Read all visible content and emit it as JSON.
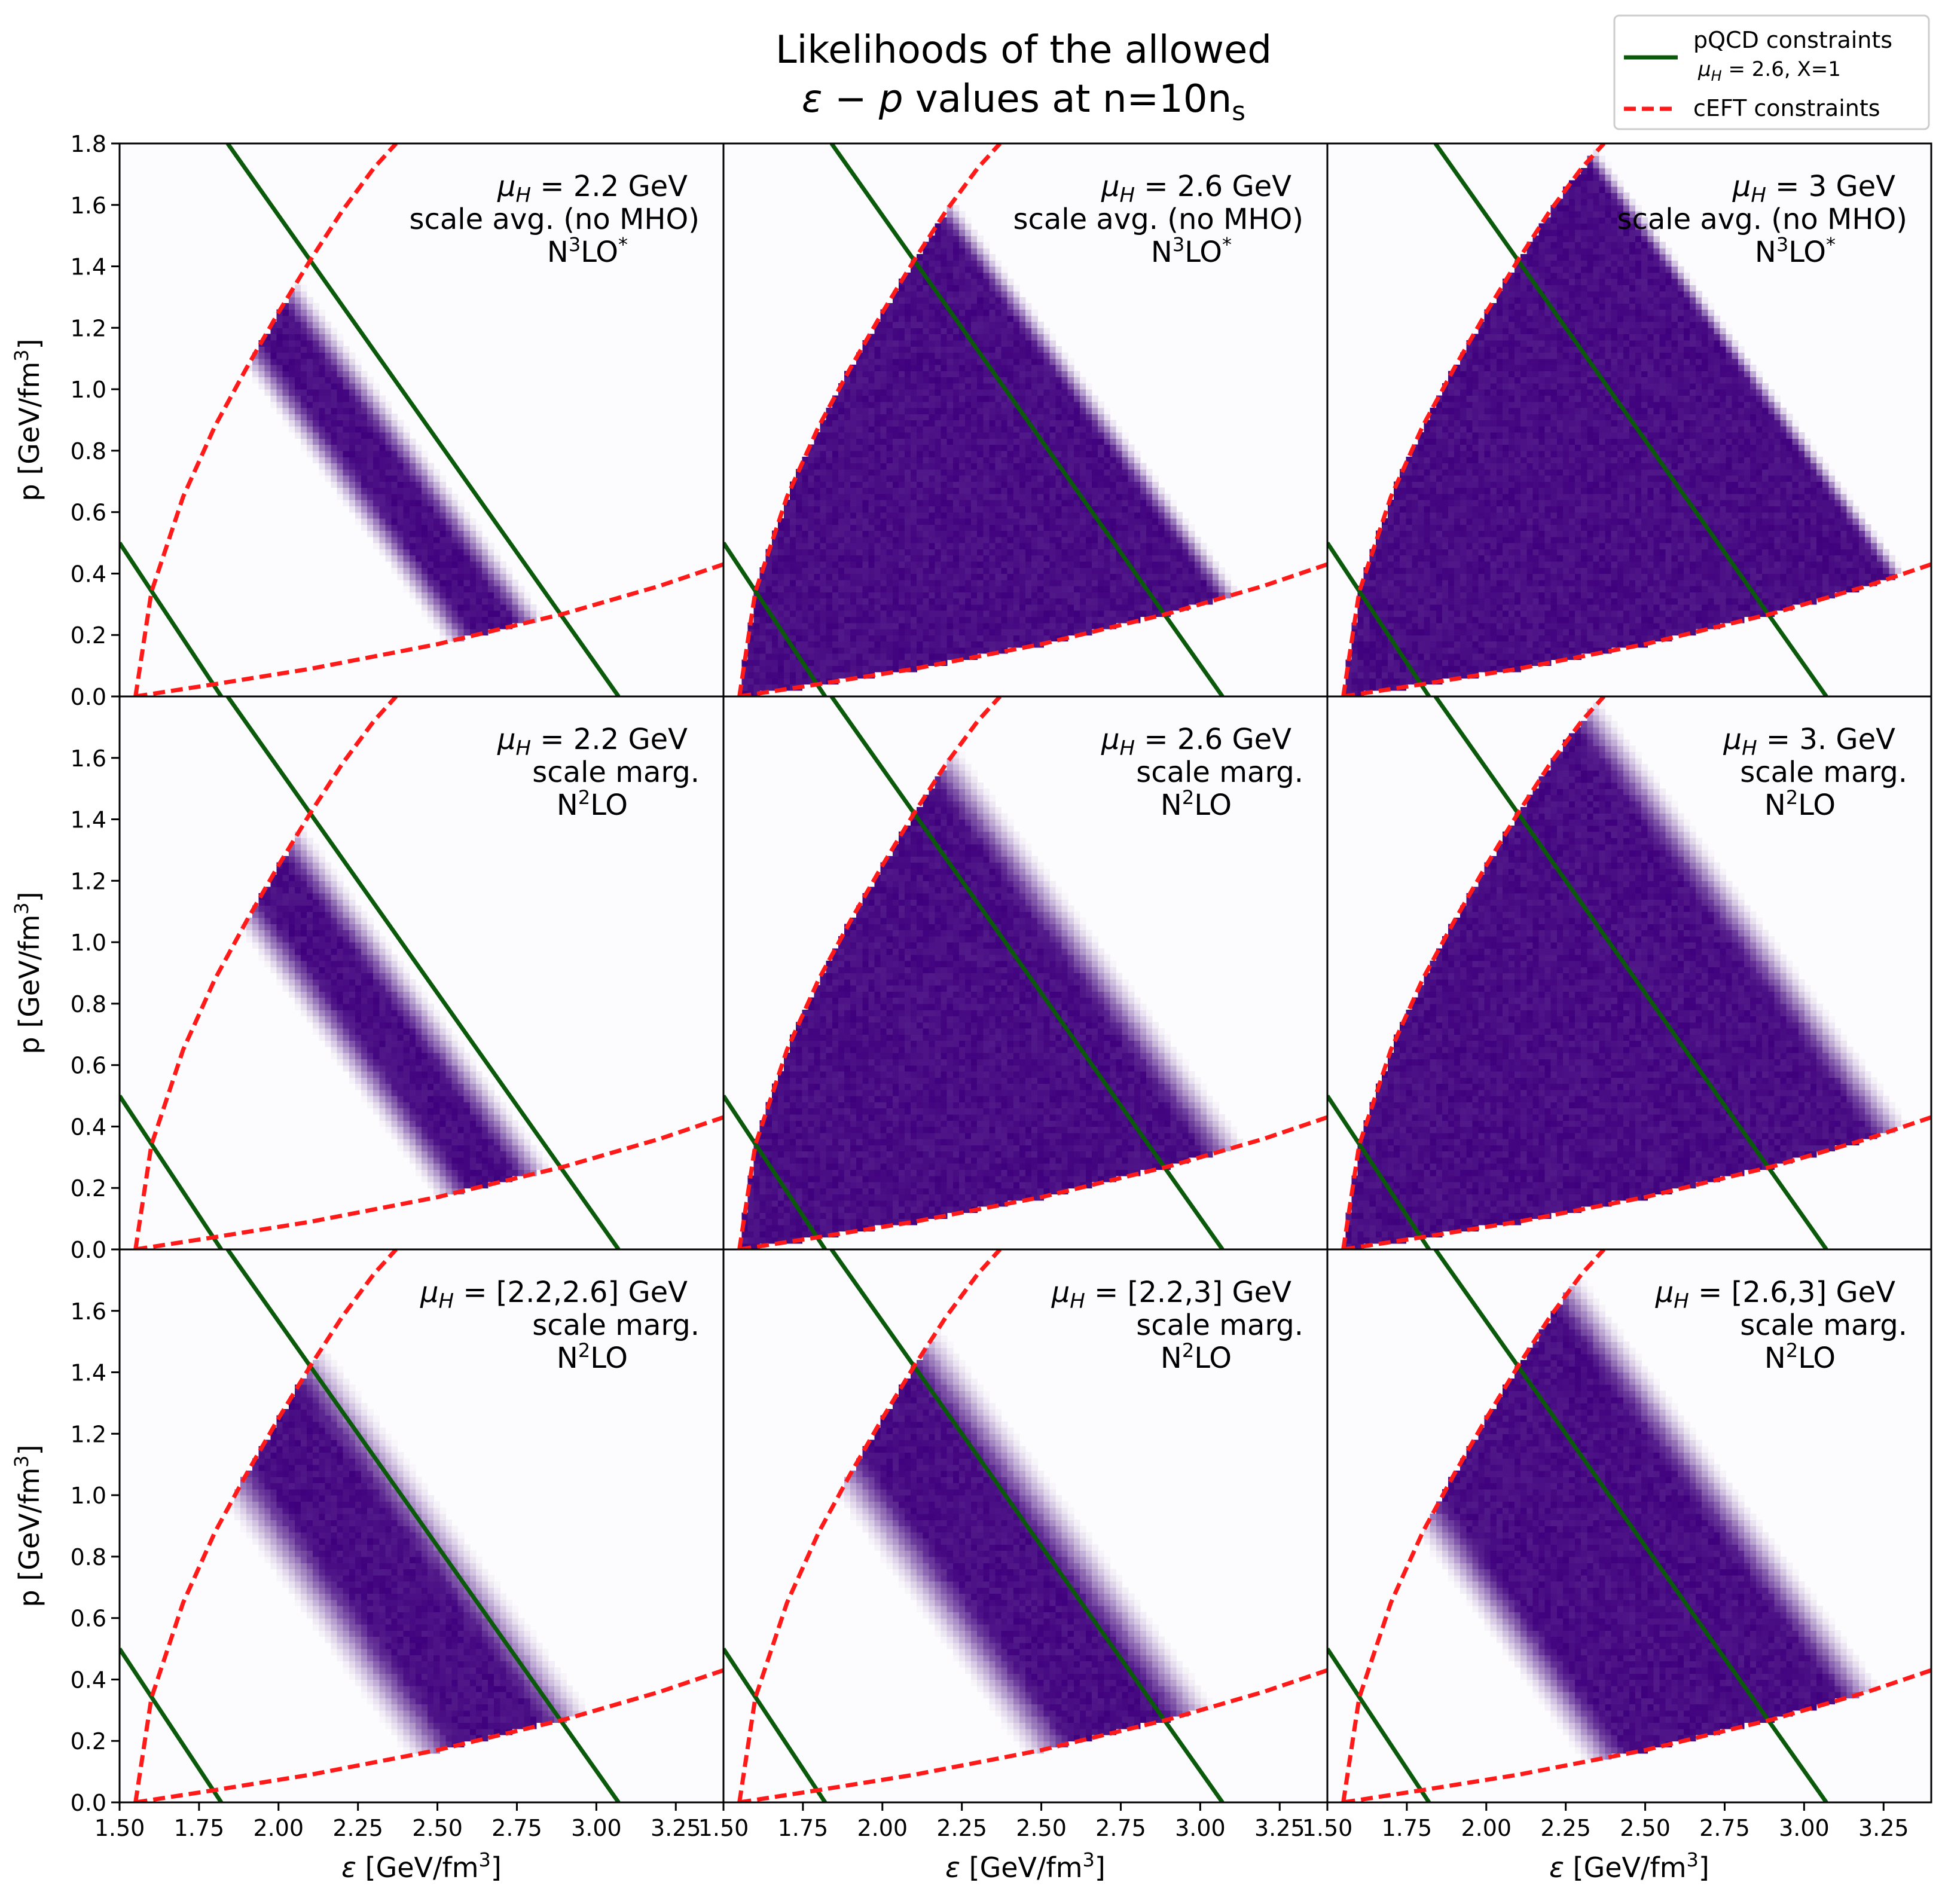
{
  "figure": {
    "title_line1": "Likelihoods of the allowed",
    "title_line2_prefix": "ε − p",
    "title_line2_mid": " values at n=10n",
    "title_line2_sub": "s",
    "xlabel_prefix": "ε [GeV/fm",
    "xlabel_sup": "3",
    "xlabel_suffix": "]",
    "ylabel_prefix": "p [GeV/fm",
    "ylabel_sup": "3",
    "ylabel_suffix": "]"
  },
  "legend": {
    "placement": "top-right",
    "entries": [
      {
        "line1": "pQCD constraints",
        "line2_mu": "μ",
        "line2_sub": "H",
        "line2_rest": " = 2.6, X=1",
        "color": "#0b5a0b",
        "style": "solid"
      },
      {
        "line1": "cEFT constraints",
        "color": "#ff1a1a",
        "style": "dashed"
      }
    ]
  },
  "colors": {
    "density_cmap": "Purples",
    "density_max": "#3f007d",
    "density_min": "#fcfbfd",
    "pqcd_line": "#0b5a0b",
    "ceft_line": "#ff1a1a"
  },
  "chart_data": {
    "type": "heatmap",
    "layout": "3x3 grid, shared axes",
    "xlabel": "ε [GeV/fm³]",
    "ylabel": "p [GeV/fm³]",
    "xlim": [
      1.5,
      3.4
    ],
    "ylim": [
      0.0,
      1.8
    ],
    "xticks": [
      1.5,
      1.75,
      2.0,
      2.25,
      2.5,
      2.75,
      3.0,
      3.25
    ],
    "xtick_labels": [
      "1.50",
      "1.75",
      "2.00",
      "2.25",
      "2.50",
      "2.75",
      "3.00",
      "3.25"
    ],
    "yticks_top": [
      0.0,
      0.2,
      0.4,
      0.6,
      0.8,
      1.0,
      1.2,
      1.4,
      1.6,
      1.8
    ],
    "ytick_labels_top": [
      "0.0",
      "0.2",
      "0.4",
      "0.6",
      "0.8",
      "1.0",
      "1.2",
      "1.4",
      "1.6",
      "1.8"
    ],
    "yticks_other": [
      0.0,
      0.2,
      0.4,
      0.6,
      0.8,
      1.0,
      1.2,
      1.4,
      1.6
    ],
    "ytick_labels_other": [
      "0.0",
      "0.2",
      "0.4",
      "0.6",
      "0.8",
      "1.0",
      "1.2",
      "1.4",
      "1.6"
    ],
    "ceft_upper": [
      [
        1.55,
        0.0
      ],
      [
        1.6,
        0.34
      ],
      [
        1.7,
        0.65
      ],
      [
        1.8,
        0.88
      ],
      [
        1.9,
        1.07
      ],
      [
        2.0,
        1.25
      ],
      [
        2.1,
        1.42
      ],
      [
        2.2,
        1.58
      ],
      [
        2.3,
        1.72
      ],
      [
        2.37,
        1.8
      ]
    ],
    "ceft_lower": [
      [
        1.55,
        0.0
      ],
      [
        1.8,
        0.04
      ],
      [
        2.1,
        0.09
      ],
      [
        2.5,
        0.17
      ],
      [
        2.9,
        0.27
      ],
      [
        3.2,
        0.36
      ],
      [
        3.4,
        0.43
      ]
    ],
    "pqcd_left": [
      [
        1.5,
        0.5
      ],
      [
        1.82,
        0.0
      ]
    ],
    "pqcd_right": [
      [
        1.84,
        1.8
      ],
      [
        3.07,
        0.0
      ]
    ],
    "panels": [
      {
        "mu_value": "2.2 GeV",
        "method": "scale avg. (no MHO)",
        "order_base": "N",
        "order_sup": "3",
        "order_rest": "LO",
        "order_star": "*",
        "band": [
          0.75,
          1.1
        ],
        "soft": 0.09
      },
      {
        "mu_value": "2.6 GeV",
        "method": "scale avg. (no MHO)",
        "order_base": "N",
        "order_sup": "3",
        "order_rest": "LO",
        "order_star": "*",
        "band": [
          -1,
          1.58
        ],
        "soft": 0.07
      },
      {
        "mu_value": "3 GeV",
        "method": "scale avg. (no MHO)",
        "order_base": "N",
        "order_sup": "3",
        "order_rest": "LO",
        "order_star": "*",
        "band": [
          -1,
          1.92
        ],
        "soft": 0.05
      },
      {
        "mu_value": "2.2 GeV",
        "method": "scale marg.",
        "order_base": "N",
        "order_sup": "2",
        "order_rest": "LO",
        "order_star": "",
        "band": [
          0.72,
          1.12
        ],
        "soft": 0.11
      },
      {
        "mu_value": "2.6 GeV",
        "method": "scale marg.",
        "order_base": "N",
        "order_sup": "2",
        "order_rest": "LO",
        "order_star": "",
        "band": [
          -1,
          1.56
        ],
        "soft": 0.13
      },
      {
        "mu_value": "3. GeV",
        "method": "scale marg.",
        "order_base": "N",
        "order_sup": "2",
        "order_rest": "LO",
        "order_star": "",
        "band": [
          -1,
          1.88
        ],
        "soft": 0.12
      },
      {
        "mu_value": "[2.2,2.6] GeV",
        "method": "scale marg.",
        "order_base": "N",
        "order_sup": "2",
        "order_rest": "LO",
        "order_star": "",
        "band": [
          0.62,
          1.28
        ],
        "soft": 0.15
      },
      {
        "mu_value": "[2.2,3] GeV",
        "method": "scale marg.",
        "order_base": "N",
        "order_sup": "2",
        "order_rest": "LO",
        "order_star": "",
        "band": [
          0.68,
          1.38
        ],
        "soft": 0.15
      },
      {
        "mu_value": "[2.6,3] GeV",
        "method": "scale marg.",
        "order_base": "N",
        "order_sup": "2",
        "order_rest": "LO",
        "order_star": "",
        "band": [
          0.45,
          1.72
        ],
        "soft": 0.13
      }
    ]
  }
}
